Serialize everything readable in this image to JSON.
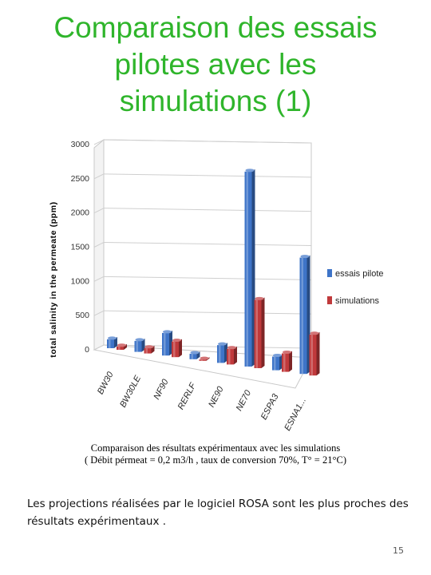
{
  "slide": {
    "title_lines": [
      "Comparaison des essais",
      "pilotes avec les",
      "simulations (1)"
    ],
    "caption_line1": "Comparaison des résultats expérimentaux avec les simulations",
    "caption_line2": "( Débit pérmeat = 0,2 m3/h , taux de conversion 70%, T° = 21°C)",
    "body_text": "Les projections réalisées par le logiciel ROSA sont les plus proches des résultats expérimentaux .",
    "page_number": "15"
  },
  "colors": {
    "title": "#2fb52b",
    "essais": "#3e74c8",
    "simulations": "#c0393b"
  },
  "chart_data": {
    "type": "bar",
    "style": "3d-clustered",
    "categories": [
      "BW30",
      "BW30LE",
      "NF90",
      "RERLF",
      "NE90",
      "NE70",
      "ESPA3",
      "ESNA1..."
    ],
    "series": [
      {
        "name": "essais pilote",
        "values": [
          130,
          160,
          330,
          80,
          260,
          2850,
          200,
          1700
        ]
      },
      {
        "name": "simulations",
        "values": [
          50,
          80,
          230,
          20,
          230,
          1000,
          270,
          600
        ]
      }
    ],
    "ylabel": "total salinity in the permeate (ppm)",
    "yticks": [
      0,
      500,
      1000,
      1500,
      2000,
      2500,
      3000
    ],
    "ylim": [
      0,
      3000
    ],
    "legend": "right",
    "grid": true
  }
}
